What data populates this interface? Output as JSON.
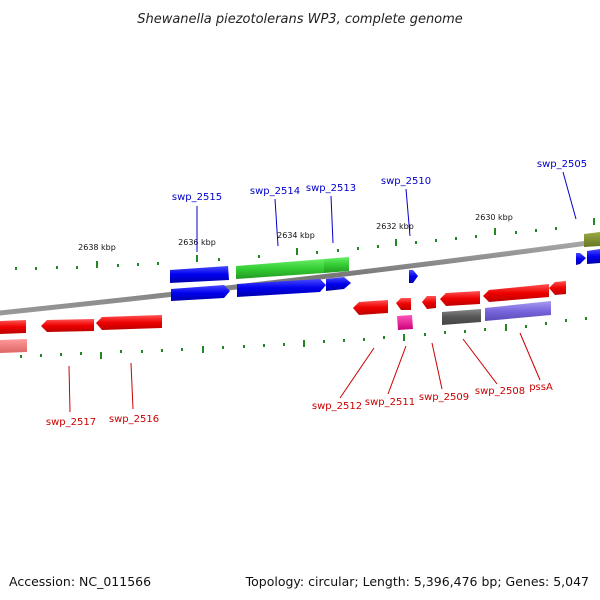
{
  "title": "Shewanella piezotolerans WP3, complete genome",
  "footer": {
    "accession": "Accession: NC_011566",
    "summary": "Topology: circular; Length: 5,396,476 bp; Genes: 5,047"
  },
  "ticks": [
    {
      "label": "2638 kbp"
    },
    {
      "label": "2636 kbp"
    },
    {
      "label": "2634 kbp"
    },
    {
      "label": "2632 kbp"
    },
    {
      "label": "2630 kbp"
    }
  ],
  "gene_labels": [
    {
      "name": "swp_2515",
      "color": "#0000cc"
    },
    {
      "name": "swp_2514",
      "color": "#0000cc"
    },
    {
      "name": "swp_2513",
      "color": "#0000cc"
    },
    {
      "name": "swp_2510",
      "color": "#0000cc"
    },
    {
      "name": "swp_2505",
      "color": "#0000cc"
    },
    {
      "name": "swp_2517",
      "color": "#cc0000"
    },
    {
      "name": "swp_2516",
      "color": "#cc0000"
    },
    {
      "name": "swp_2512",
      "color": "#cc0000"
    },
    {
      "name": "swp_2511",
      "color": "#cc0000"
    },
    {
      "name": "swp_2509",
      "color": "#cc0000"
    },
    {
      "name": "swp_2508",
      "color": "#cc0000"
    },
    {
      "name": "pssA",
      "color": "#cc0000"
    }
  ],
  "colors": {
    "forward_cds": "#0000ff",
    "reverse_cds": "#ff0000",
    "rrna": "#33cc33",
    "trna": "#ff1493",
    "misc": "#707070",
    "other": "#8877dd",
    "backbone": "#888888"
  }
}
